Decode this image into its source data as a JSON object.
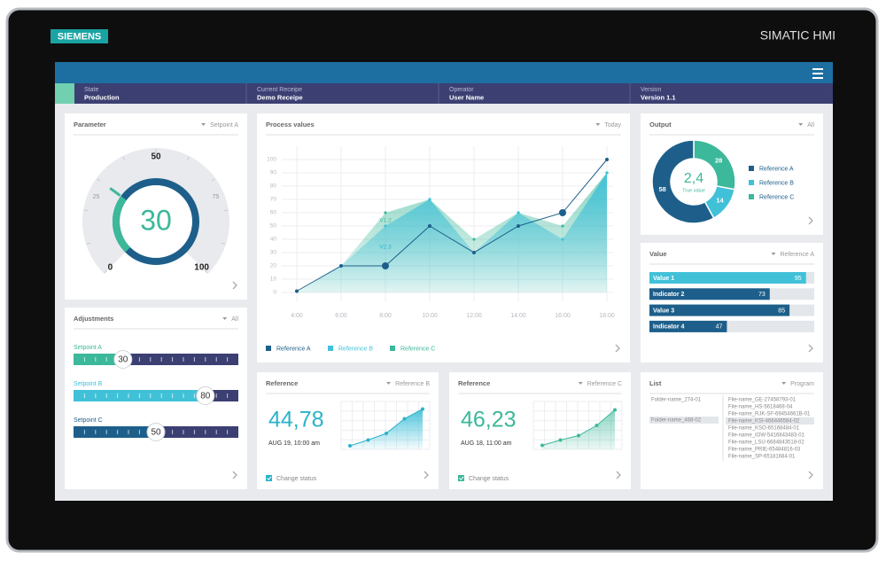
{
  "device": {
    "brand": "SIEMENS",
    "model": "SIMATIC HMI"
  },
  "header": [
    {
      "label": "State",
      "value": "Production"
    },
    {
      "label": "Current Receipe",
      "value": "Demo Receipe"
    },
    {
      "label": "Operator",
      "value": "User Name"
    },
    {
      "label": "Version",
      "value": "Version 1.1"
    }
  ],
  "parameter": {
    "title": "Parameter",
    "filter": "Setpoint A",
    "value": 30,
    "ticks": [
      0,
      25,
      50,
      75,
      100
    ]
  },
  "adjustments": {
    "title": "Adjustments",
    "filter": "All",
    "xlim": [
      0,
      100
    ],
    "sliders": [
      {
        "name": "Setpoint A",
        "value": 30,
        "color": "#3cb89a"
      },
      {
        "name": "Setpoint B",
        "value": 80,
        "color": "#41c1d8"
      },
      {
        "name": "Setpoint C",
        "value": 50,
        "color": "#1d5f8a"
      }
    ]
  },
  "process": {
    "title": "Process values",
    "filter": "Today",
    "x": [
      "4:00",
      "6:00",
      "8:00",
      "10:00",
      "12:00",
      "14:00",
      "16:00",
      "18:00"
    ],
    "ylim": [
      0,
      100
    ],
    "yticks": [
      0,
      10,
      20,
      30,
      40,
      50,
      60,
      70,
      80,
      90,
      100
    ],
    "series": [
      {
        "name": "Reference A",
        "color": "#1d5f8a",
        "values": [
          1,
          20,
          20,
          50,
          30,
          50,
          60,
          100
        ]
      },
      {
        "name": "Reference B",
        "color": "#41c1d8",
        "values": [
          0,
          20,
          50,
          70,
          30,
          60,
          40,
          90
        ]
      },
      {
        "name": "Reference C",
        "color": "#3cb89a",
        "values": [
          0,
          20,
          60,
          70,
          40,
          60,
          50,
          90
        ]
      }
    ],
    "annotations": [
      "V1.2",
      "V2.3"
    ]
  },
  "output": {
    "title": "Output",
    "filter": "All",
    "center_value": "2,4",
    "center_label": "True value",
    "series": [
      {
        "name": "Reference A",
        "value": 58,
        "color": "#1d5f8a"
      },
      {
        "name": "Reference B",
        "value": 14,
        "color": "#41c1d8"
      },
      {
        "name": "Reference C",
        "value": 28,
        "color": "#3cb89a"
      }
    ]
  },
  "value": {
    "title": "Value",
    "filter": "Reference A",
    "xlim": [
      0,
      100
    ],
    "bars": [
      {
        "name": "Value 1",
        "value": 95,
        "color": "#41c1d8"
      },
      {
        "name": "Indicator 2",
        "value": 73,
        "color": "#1d5f8a"
      },
      {
        "name": "Value 3",
        "value": 85,
        "color": "#1d5f8a"
      },
      {
        "name": "Indicator 4",
        "value": 47,
        "color": "#1d5f8a"
      }
    ]
  },
  "references": [
    {
      "title": "Reference",
      "filter": "Reference B",
      "value": "44,78",
      "date": "AUG 19, 10:00 am",
      "status": "Change status",
      "color": "#2ab3c8",
      "ylim": [
        0,
        100
      ],
      "trend": [
        2,
        15,
        30,
        63,
        85
      ]
    },
    {
      "title": "Reference",
      "filter": "Reference C",
      "value": "46,23",
      "date": "AUG 18, 11:00 am",
      "status": "Change status",
      "color": "#3cb89a",
      "ylim": [
        0,
        100
      ],
      "trend": [
        3,
        15,
        25,
        48,
        83
      ]
    }
  ],
  "list": {
    "title": "List",
    "filter": "Program",
    "folders": [
      "Folder-name_274-01",
      "Folder-name_468-02"
    ],
    "files": [
      "File-name_GE-27458793-01",
      "File-name_HS-5618468-04",
      "File-name_RJK-SF-69454661B-01",
      "File-name_KSI-468446584-02",
      "File-name_KSO-65168484-01",
      "File-name_IOW-5416843483-01",
      "File-name_LSU-6684843518-02",
      "File-name_PRIE-65484816-03",
      "File-name_SP-65181684-01"
    ]
  }
}
